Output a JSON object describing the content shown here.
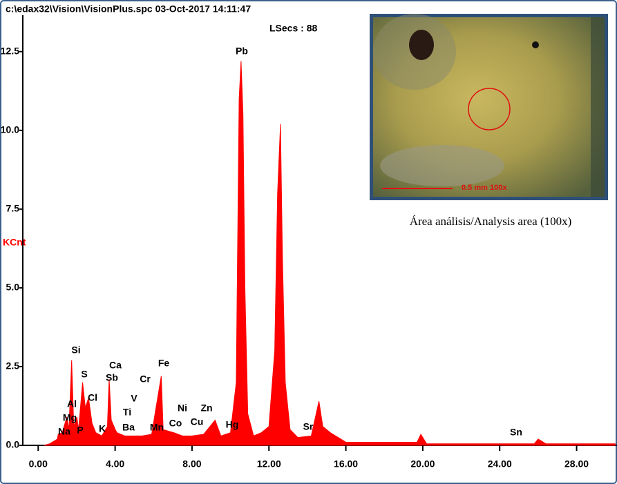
{
  "chart_data": {
    "type": "area",
    "title": "c:\\edax32\\Vision\\VisionPlus.spc  03-Oct-2017 14:11:47",
    "subtitle": "LSecs :  88",
    "y_label": "KCnt",
    "color": "#ff0000",
    "xlim": [
      -0.8,
      30.1
    ],
    "ylim": [
      0,
      13.7
    ],
    "xticks": [
      {
        "value": 0,
        "label": "0.00"
      },
      {
        "value": 4,
        "label": "4.00"
      },
      {
        "value": 8,
        "label": "8.00"
      },
      {
        "value": 12,
        "label": "12.00"
      },
      {
        "value": 16,
        "label": "16.00"
      },
      {
        "value": 20,
        "label": "20.00"
      },
      {
        "value": 24,
        "label": "24.00"
      },
      {
        "value": 28,
        "label": "28.00"
      }
    ],
    "yticks": [
      {
        "value": 0,
        "label": "0.0"
      },
      2.5,
      {
        "value": 5,
        "label": "5.0"
      },
      7.5,
      {
        "value": 10,
        "label": "10.0"
      },
      12.5
    ],
    "x": [
      0.3,
      0.6,
      1.0,
      1.04,
      1.25,
      1.49,
      1.6,
      1.74,
      1.85,
      2.01,
      2.1,
      2.31,
      2.45,
      2.62,
      2.8,
      3.0,
      3.31,
      3.6,
      3.69,
      3.8,
      4.01,
      4.1,
      4.5,
      4.95,
      5.4,
      5.9,
      6.4,
      6.5,
      7.06,
      7.5,
      8.0,
      8.6,
      9.2,
      9.5,
      10.0,
      10.3,
      10.45,
      10.55,
      10.65,
      10.75,
      10.9,
      11.2,
      11.6,
      12.0,
      12.3,
      12.45,
      12.6,
      12.7,
      12.85,
      13.1,
      13.5,
      14.2,
      14.6,
      14.8,
      15.2,
      16.0,
      18.0,
      19.7,
      19.9,
      20.2,
      22.0,
      25.8,
      26.0,
      26.4,
      30.0
    ],
    "values": [
      0,
      0.05,
      0.2,
      0.35,
      0.4,
      0.9,
      0.5,
      2.7,
      0.6,
      0.9,
      0.5,
      2.0,
      1.2,
      1.5,
      0.7,
      0.4,
      0.3,
      0.6,
      2.1,
      0.8,
      0.5,
      0.4,
      0.3,
      0.3,
      0.3,
      0.35,
      2.2,
      0.5,
      0.4,
      0.3,
      0.3,
      0.35,
      0.8,
      0.3,
      0.4,
      2.0,
      11.0,
      12.2,
      10.5,
      5.0,
      1.0,
      0.3,
      0.4,
      0.6,
      3.0,
      8.0,
      10.2,
      6.0,
      2.0,
      0.5,
      0.25,
      0.3,
      1.4,
      0.6,
      0.4,
      0.1,
      0.1,
      0.1,
      0.35,
      0.05,
      0.05,
      0.05,
      0.2,
      0.05,
      0.05
    ],
    "annotations": [
      "Pb",
      "Si",
      "S",
      "Ca",
      "Sb",
      "Cr",
      "Fe",
      "V",
      "Al",
      "Cl",
      "Mg",
      "Ti",
      "Ni",
      "Zn",
      "Na",
      "P",
      "K",
      "Ba",
      "Mn",
      "Co",
      "Cu",
      "Hg",
      "Sr",
      "Sn"
    ],
    "inset": {
      "scale_text": "0.5 mm  100x",
      "caption": "Área análisis/Analysis area (100x)"
    }
  }
}
